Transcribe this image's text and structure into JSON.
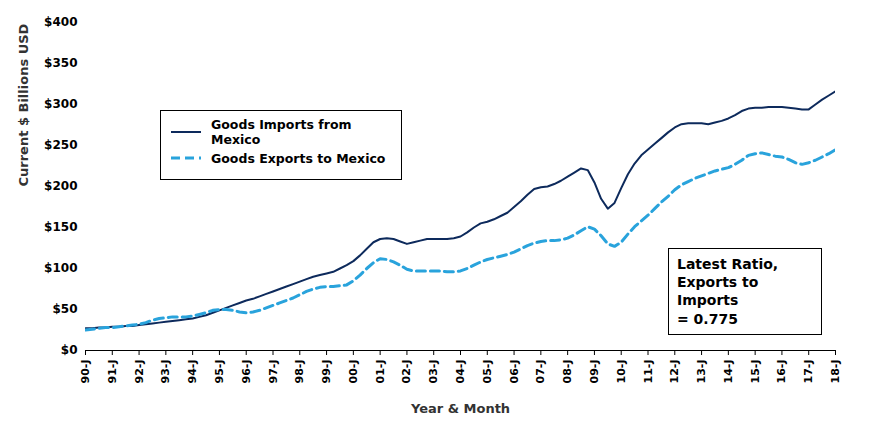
{
  "chart_data": {
    "type": "line",
    "x_label": "Year & Month",
    "y_label": "Current $ Billions USD",
    "annotation": "Latest Ratio,\nExports to Imports\n= 0.775",
    "legend": "top-left",
    "grid": false,
    "categories": [
      "90-J",
      null,
      null,
      null,
      "91-J",
      null,
      null,
      null,
      "92-J",
      null,
      null,
      null,
      "93-J",
      null,
      null,
      null,
      "94-J",
      null,
      null,
      null,
      "95-J",
      null,
      null,
      null,
      "96-J",
      null,
      null,
      null,
      "97-J",
      null,
      null,
      null,
      "98-J",
      null,
      null,
      null,
      "99-J",
      null,
      null,
      null,
      "00-J",
      null,
      null,
      null,
      "01-J",
      null,
      null,
      null,
      "02-J",
      null,
      null,
      null,
      "03-J",
      null,
      null,
      null,
      "04-J",
      null,
      null,
      null,
      "05-J",
      null,
      null,
      null,
      "06-J",
      null,
      null,
      null,
      "07-J",
      null,
      null,
      null,
      "08-J",
      null,
      null,
      null,
      "09-J",
      null,
      null,
      null,
      "10-J",
      null,
      null,
      null,
      "11-J",
      null,
      null,
      null,
      "12-J",
      null,
      null,
      null,
      "13-J",
      null,
      null,
      null,
      "14-J",
      null,
      null,
      null,
      "15-J",
      null,
      null,
      null,
      "16-J",
      null,
      null,
      null,
      "17-J",
      null,
      null,
      null,
      "18-J"
    ],
    "ylim": [
      0,
      400
    ],
    "yticks": [
      {
        "value": 0,
        "label": "$0"
      },
      {
        "value": 50,
        "label": "$50"
      },
      {
        "value": 100,
        "label": "$100"
      },
      {
        "value": 150,
        "label": "$150"
      },
      {
        "value": 200,
        "label": "$200"
      },
      {
        "value": 250,
        "label": "$250"
      },
      {
        "value": 300,
        "label": "$300"
      },
      {
        "value": 350,
        "label": "$350"
      },
      {
        "value": 400,
        "label": "$400"
      }
    ],
    "series": [
      {
        "name": "Goods Imports from Mexico",
        "color": "#0d2a5c",
        "line_style": "solid",
        "values": [
          27,
          27,
          28,
          28,
          29,
          29,
          30,
          30,
          31,
          32,
          33,
          34,
          35,
          36,
          37,
          38,
          39,
          41,
          43,
          46,
          49,
          52,
          55,
          58,
          61,
          63,
          66,
          69,
          72,
          75,
          78,
          81,
          84,
          87,
          90,
          92,
          94,
          96,
          100,
          104,
          109,
          116,
          124,
          132,
          136,
          137,
          136,
          133,
          130,
          132,
          134,
          136,
          136,
          136,
          136,
          137,
          139,
          144,
          150,
          155,
          157,
          160,
          164,
          168,
          175,
          182,
          190,
          197,
          199,
          200,
          203,
          207,
          212,
          217,
          222,
          220,
          205,
          185,
          173,
          180,
          198,
          215,
          228,
          238,
          245,
          252,
          259,
          266,
          272,
          276,
          277,
          277,
          277,
          276,
          278,
          280,
          283,
          287,
          292,
          295,
          296,
          296,
          297,
          297,
          297,
          296,
          295,
          294,
          294,
          300,
          306,
          311,
          316
        ]
      },
      {
        "name": "Goods Exports to Mexico",
        "color": "#29a3dc",
        "line_style": "dashed",
        "values": [
          25,
          26,
          27,
          28,
          28,
          29,
          30,
          31,
          32,
          34,
          37,
          39,
          40,
          41,
          41,
          41,
          42,
          44,
          46,
          49,
          50,
          50,
          49,
          47,
          46,
          47,
          49,
          52,
          55,
          58,
          61,
          64,
          68,
          72,
          75,
          77,
          78,
          78,
          79,
          80,
          85,
          92,
          100,
          107,
          112,
          111,
          108,
          104,
          99,
          97,
          97,
          97,
          97,
          97,
          96,
          96,
          97,
          100,
          104,
          108,
          111,
          113,
          115,
          117,
          120,
          124,
          128,
          131,
          133,
          134,
          134,
          135,
          137,
          141,
          146,
          151,
          148,
          140,
          130,
          127,
          132,
          142,
          151,
          158,
          165,
          173,
          181,
          188,
          196,
          202,
          206,
          210,
          213,
          216,
          219,
          221,
          223,
          227,
          232,
          238,
          240,
          241,
          239,
          237,
          236,
          233,
          229,
          227,
          229,
          232,
          236,
          240,
          245
        ]
      }
    ]
  }
}
